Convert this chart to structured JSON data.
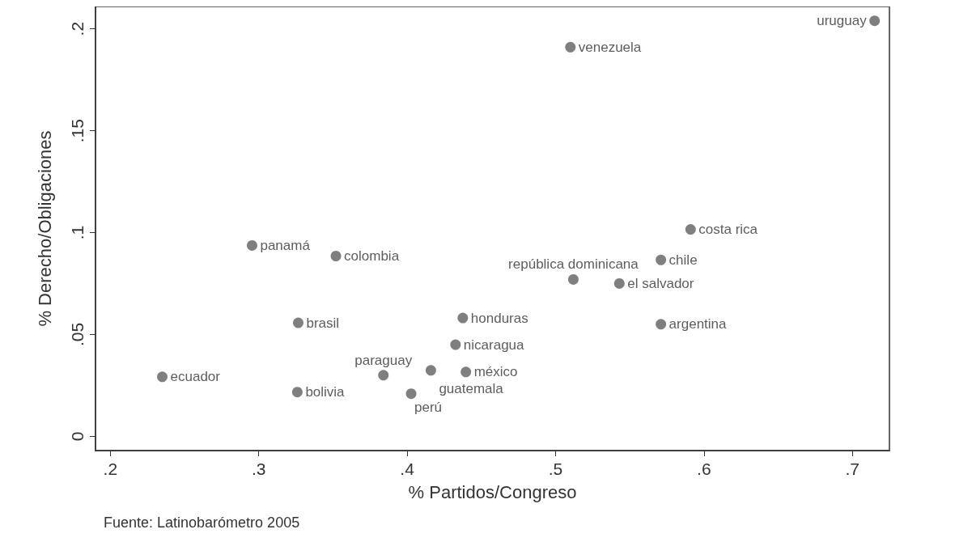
{
  "chart_data": {
    "type": "scatter",
    "xlabel": "% Partidos/Congreso",
    "ylabel": "% Derecho/Obligaciones",
    "annotations": [
      "Fuente: Latinobarómetro 2005"
    ],
    "xlim": [
      0.19,
      0.725
    ],
    "ylim": [
      -0.007,
      0.211
    ],
    "xticks": [
      {
        "value": 0.2,
        "label": ".2"
      },
      {
        "value": 0.3,
        "label": ".3"
      },
      {
        "value": 0.4,
        "label": ".4"
      },
      {
        "value": 0.5,
        "label": ".5"
      },
      {
        "value": 0.6,
        "label": ".6"
      },
      {
        "value": 0.7,
        "label": ".7"
      }
    ],
    "yticks": [
      0,
      {
        "value": 0.05,
        "label": ".05"
      },
      {
        "value": 0.1,
        "label": ".1"
      },
      {
        "value": 0.15,
        "label": ".15"
      },
      {
        "value": 0.2,
        "label": ".2"
      }
    ],
    "grid": false,
    "marker": "circle",
    "series": [
      {
        "color": "#5f5f5f",
        "x": [
          0.715,
          0.51,
          0.591,
          0.571,
          0.512,
          0.543,
          0.571,
          0.2955,
          0.352,
          0.3266,
          0.4375,
          0.4326,
          0.235,
          0.326,
          0.384,
          0.416,
          0.4396,
          0.4027
        ],
        "values": [
          0.204,
          0.191,
          0.1016,
          0.0866,
          0.077,
          0.075,
          0.055,
          0.0937,
          0.0885,
          0.0557,
          0.0581,
          0.045,
          0.0292,
          0.0217,
          0.03,
          0.0324,
          0.0316,
          0.0209
        ],
        "value_labels": [
          "uruguay",
          "venezuela",
          "costa rica",
          "chile",
          "república dominicana",
          "el salvador",
          "argentina",
          "panamá",
          "colombia",
          "brasil",
          "honduras",
          "nicaragua",
          "ecuador",
          "bolivia",
          "paraguay",
          "guatemala",
          "méxico",
          "perú"
        ]
      }
    ]
  }
}
